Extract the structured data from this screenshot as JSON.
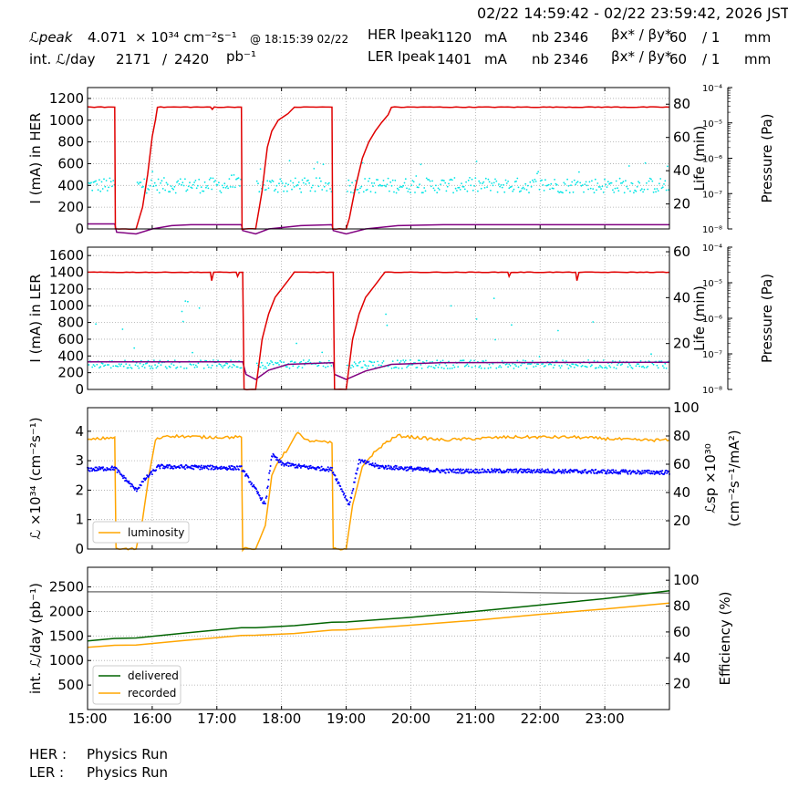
{
  "header": {
    "time_range": "02/22 14:59:42 - 02/22 23:59:42, 2026 JST",
    "lpeak_label": "ℒpeak",
    "lpeak_value": "4.071",
    "lpeak_unit": "× 10³⁴ cm⁻²s⁻¹",
    "lpeak_time": "@ 18:15:39 02/22",
    "intl_label": "int. ℒ/day",
    "intl_value": "2171",
    "intl_sep": "/",
    "intl_total": "2420",
    "intl_unit": "pb⁻¹",
    "her_label": "HER Ipeak",
    "her_value": "1120",
    "ler_label": "LER Ipeak",
    "ler_value": "1401",
    "current_unit": "mA",
    "nb_label": "nb",
    "her_nb": "2346",
    "ler_nb": "2346",
    "beta_label": "βx* / βy*",
    "her_beta": "60",
    "ler_beta": "60",
    "beta_y": "/ 1",
    "beta_unit": "mm"
  },
  "footer": {
    "her_label": "HER :",
    "her_status": "Physics Run",
    "ler_label": "LER :",
    "ler_status": "Physics Run"
  },
  "chart_data": [
    {
      "type": "line",
      "ylabel": "I (mA) in HER",
      "ylabel_right": "Life (min)",
      "ylabel_right2": "Pressure (Pa)",
      "ylim": [
        0,
        1300
      ],
      "yticks": [
        0,
        200,
        400,
        600,
        800,
        1000,
        1200
      ],
      "ylim_right": [
        5,
        90
      ],
      "yticks_right": [
        20,
        40,
        60,
        80
      ],
      "pressure_ticks": [
        "10⁻⁸",
        "10⁻⁷",
        "10⁻⁶",
        "10⁻⁵",
        "10⁻⁴"
      ],
      "grid": true,
      "colors": {
        "current": "#e00000",
        "life": "#800080",
        "pressure": "#00e5e5"
      },
      "current": [
        [
          15.0,
          1120
        ],
        [
          15.42,
          1120
        ],
        [
          15.43,
          0
        ],
        [
          15.75,
          0
        ],
        [
          15.85,
          200
        ],
        [
          15.93,
          500
        ],
        [
          16.0,
          850
        ],
        [
          16.05,
          1000
        ],
        [
          16.08,
          1120
        ],
        [
          16.9,
          1120
        ],
        [
          16.93,
          1100
        ],
        [
          16.96,
          1120
        ],
        [
          17.38,
          1120
        ],
        [
          17.39,
          0
        ],
        [
          17.6,
          0
        ],
        [
          17.7,
          350
        ],
        [
          17.78,
          750
        ],
        [
          17.85,
          900
        ],
        [
          17.95,
          1000
        ],
        [
          18.1,
          1060
        ],
        [
          18.2,
          1120
        ],
        [
          18.78,
          1120
        ],
        [
          18.79,
          0
        ],
        [
          19.0,
          0
        ],
        [
          19.05,
          100
        ],
        [
          19.15,
          400
        ],
        [
          19.25,
          650
        ],
        [
          19.35,
          800
        ],
        [
          19.45,
          900
        ],
        [
          19.55,
          980
        ],
        [
          19.65,
          1050
        ],
        [
          19.7,
          1120
        ],
        [
          24.0,
          1120
        ]
      ],
      "life": [
        [
          15.0,
          8
        ],
        [
          15.42,
          8
        ],
        [
          15.45,
          3
        ],
        [
          15.75,
          2
        ],
        [
          16.0,
          5
        ],
        [
          16.3,
          7
        ],
        [
          16.6,
          7.5
        ],
        [
          17.38,
          7.5
        ],
        [
          17.4,
          4
        ],
        [
          17.6,
          2
        ],
        [
          17.8,
          5
        ],
        [
          18.3,
          7
        ],
        [
          18.78,
          7.5
        ],
        [
          18.8,
          4
        ],
        [
          19.0,
          2
        ],
        [
          19.3,
          5
        ],
        [
          19.8,
          7
        ],
        [
          20.5,
          7.5
        ],
        [
          24.0,
          7.5
        ]
      ],
      "pressure_band": {
        "x_ranges": [
          [
            15.0,
            15.42
          ],
          [
            15.75,
            17.38
          ],
          [
            17.6,
            18.78
          ],
          [
            19.0,
            24.0
          ]
        ],
        "center": 400,
        "spread": 70,
        "max": 630
      }
    },
    {
      "type": "line",
      "ylabel": "I (mA) in LER",
      "ylabel_right": "Life (min)",
      "ylabel_right2": "Pressure (Pa)",
      "ylim": [
        0,
        1700
      ],
      "yticks": [
        0,
        200,
        400,
        600,
        800,
        1000,
        1200,
        1400,
        1600
      ],
      "ylim_right": [
        0,
        62
      ],
      "yticks_right": [
        20,
        40,
        60
      ],
      "pressure_ticks": [
        "10⁻⁸",
        "10⁻⁷",
        "10⁻⁶",
        "10⁻⁵",
        "10⁻⁴"
      ],
      "grid": true,
      "colors": {
        "current": "#e00000",
        "life": "#800080",
        "pressure": "#00e5e5"
      },
      "current": [
        [
          15.0,
          1400
        ],
        [
          16.9,
          1400
        ],
        [
          16.92,
          1300
        ],
        [
          16.95,
          1400
        ],
        [
          17.3,
          1400
        ],
        [
          17.32,
          1350
        ],
        [
          17.35,
          1400
        ],
        [
          17.4,
          1400
        ],
        [
          17.42,
          0
        ],
        [
          17.6,
          0
        ],
        [
          17.7,
          600
        ],
        [
          17.8,
          900
        ],
        [
          17.9,
          1100
        ],
        [
          18.0,
          1200
        ],
        [
          18.1,
          1300
        ],
        [
          18.2,
          1400
        ],
        [
          18.8,
          1400
        ],
        [
          18.82,
          0
        ],
        [
          19.0,
          0
        ],
        [
          19.1,
          600
        ],
        [
          19.2,
          900
        ],
        [
          19.3,
          1100
        ],
        [
          19.4,
          1200
        ],
        [
          19.5,
          1300
        ],
        [
          19.6,
          1400
        ],
        [
          21.5,
          1400
        ],
        [
          21.52,
          1350
        ],
        [
          21.55,
          1400
        ],
        [
          22.55,
          1400
        ],
        [
          22.57,
          1300
        ],
        [
          22.6,
          1400
        ],
        [
          24.0,
          1400
        ]
      ],
      "life": [
        [
          15.0,
          330
        ],
        [
          17.4,
          330
        ],
        [
          17.45,
          180
        ],
        [
          17.6,
          120
        ],
        [
          17.8,
          230
        ],
        [
          18.1,
          300
        ],
        [
          18.8,
          320
        ],
        [
          18.82,
          180
        ],
        [
          19.0,
          120
        ],
        [
          19.3,
          220
        ],
        [
          19.7,
          300
        ],
        [
          20.5,
          320
        ],
        [
          24.0,
          325
        ]
      ],
      "pressure_band": {
        "x_ranges": [
          [
            15.0,
            17.38
          ],
          [
            17.6,
            18.78
          ],
          [
            19.0,
            24.0
          ]
        ],
        "center": 300,
        "spread": 50,
        "max": 1100
      }
    },
    {
      "type": "line",
      "ylabel": "ℒ ×10³⁴ (cm⁻²s⁻¹)",
      "ylabel_right": "ℒsp ×10³⁰",
      "ylabel_right2": "(cm⁻²s⁻¹/mA²)",
      "ylim": [
        0,
        4.8
      ],
      "yticks": [
        0,
        1,
        2,
        3,
        4
      ],
      "ylim_right": [
        0,
        100
      ],
      "yticks_right": [
        20,
        40,
        60,
        80,
        100
      ],
      "grid": true,
      "colors": {
        "luminosity": "#ffa500",
        "specific": "#0000ff"
      },
      "legend": [
        "luminosity"
      ],
      "legend_position": "lower-left",
      "luminosity": [
        [
          15.0,
          3.7
        ],
        [
          15.42,
          3.8
        ],
        [
          15.44,
          0
        ],
        [
          15.75,
          0
        ],
        [
          15.85,
          1.0
        ],
        [
          15.95,
          2.5
        ],
        [
          16.05,
          3.7
        ],
        [
          16.2,
          3.85
        ],
        [
          16.8,
          3.8
        ],
        [
          17.38,
          3.8
        ],
        [
          17.4,
          0
        ],
        [
          17.6,
          0
        ],
        [
          17.75,
          0.8
        ],
        [
          17.85,
          2.5
        ],
        [
          17.95,
          3.0
        ],
        [
          18.1,
          3.4
        ],
        [
          18.25,
          4.0
        ],
        [
          18.35,
          3.7
        ],
        [
          18.78,
          3.6
        ],
        [
          18.8,
          0
        ],
        [
          19.0,
          0
        ],
        [
          19.1,
          1.5
        ],
        [
          19.25,
          2.8
        ],
        [
          19.4,
          3.2
        ],
        [
          19.6,
          3.6
        ],
        [
          19.8,
          3.85
        ],
        [
          20.5,
          3.7
        ],
        [
          21.5,
          3.8
        ],
        [
          22.5,
          3.8
        ],
        [
          23.5,
          3.7
        ],
        [
          24.0,
          3.7
        ]
      ],
      "specific": [
        [
          15.0,
          2.7
        ],
        [
          15.42,
          2.75
        ],
        [
          15.75,
          2.0
        ],
        [
          15.9,
          2.4
        ],
        [
          16.1,
          2.8
        ],
        [
          17.38,
          2.75
        ],
        [
          17.75,
          1.5
        ],
        [
          17.85,
          3.2
        ],
        [
          18.0,
          2.9
        ],
        [
          18.3,
          2.8
        ],
        [
          18.78,
          2.7
        ],
        [
          19.05,
          1.5
        ],
        [
          19.2,
          3.0
        ],
        [
          19.5,
          2.8
        ],
        [
          20.5,
          2.65
        ],
        [
          22.0,
          2.65
        ],
        [
          24.0,
          2.6
        ]
      ]
    },
    {
      "type": "line",
      "ylabel": "int. ℒ/day (pb⁻¹)",
      "ylabel_right": "Efficiency (%)",
      "xlabel": "",
      "ylim": [
        0,
        2900
      ],
      "yticks": [
        500,
        1000,
        1500,
        2000,
        2500
      ],
      "ylim_right": [
        0,
        110
      ],
      "yticks_right": [
        20,
        40,
        60,
        80,
        100
      ],
      "xlim": [
        15.0,
        24.0
      ],
      "xticks": [
        "15:00",
        "16:00",
        "17:00",
        "18:00",
        "19:00",
        "20:00",
        "21:00",
        "22:00",
        "23:00"
      ],
      "grid": true,
      "colors": {
        "delivered": "#006400",
        "recorded": "#ffa500",
        "efficiency": "#808080"
      },
      "legend": [
        "delivered",
        "recorded"
      ],
      "legend_position": "lower-left",
      "series": [
        {
          "name": "delivered",
          "points": [
            [
              15.0,
              1400
            ],
            [
              15.42,
              1450
            ],
            [
              15.75,
              1460
            ],
            [
              16.5,
              1560
            ],
            [
              17.38,
              1670
            ],
            [
              17.6,
              1670
            ],
            [
              18.2,
              1710
            ],
            [
              18.78,
              1780
            ],
            [
              19.0,
              1785
            ],
            [
              20.0,
              1880
            ],
            [
              21.0,
              2000
            ],
            [
              22.0,
              2130
            ],
            [
              23.0,
              2260
            ],
            [
              24.0,
              2420
            ]
          ]
        },
        {
          "name": "recorded",
          "points": [
            [
              15.0,
              1270
            ],
            [
              15.42,
              1310
            ],
            [
              15.75,
              1315
            ],
            [
              16.5,
              1410
            ],
            [
              17.38,
              1510
            ],
            [
              17.6,
              1515
            ],
            [
              18.2,
              1550
            ],
            [
              18.78,
              1620
            ],
            [
              19.0,
              1625
            ],
            [
              20.0,
              1720
            ],
            [
              21.0,
              1820
            ],
            [
              22.0,
              1940
            ],
            [
              23.0,
              2050
            ],
            [
              24.0,
              2171
            ]
          ]
        }
      ],
      "efficiency": [
        [
          15.0,
          91
        ],
        [
          18.0,
          91
        ],
        [
          21.0,
          91
        ],
        [
          22.5,
          90
        ],
        [
          24.0,
          90
        ]
      ]
    }
  ]
}
